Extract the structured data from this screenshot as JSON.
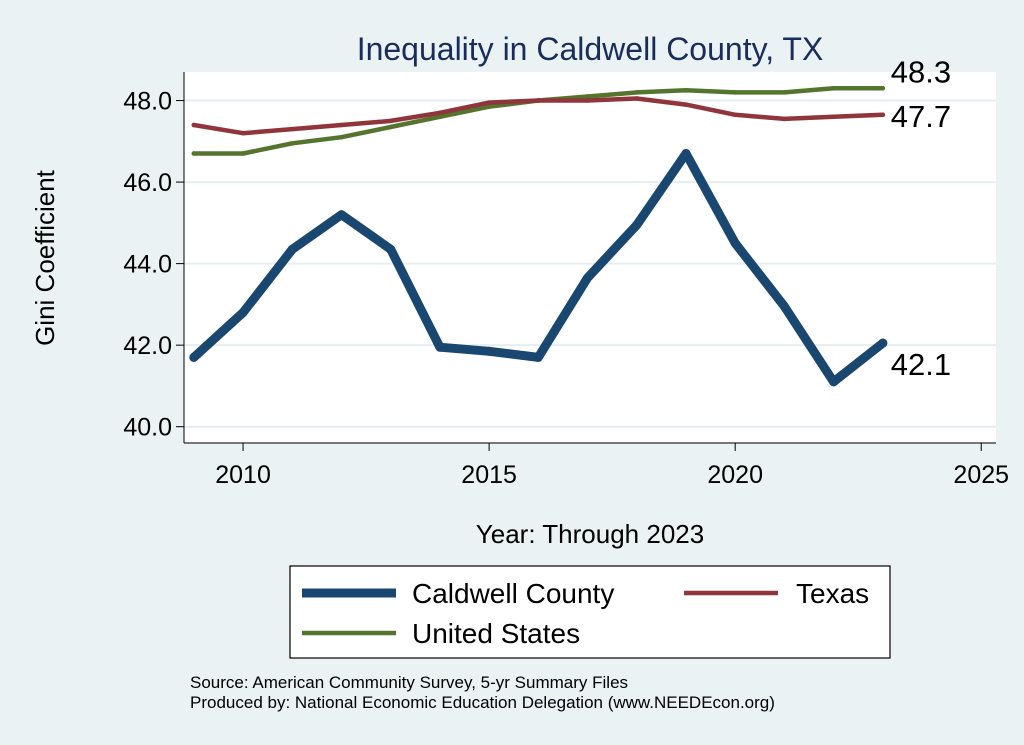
{
  "chart_data": {
    "type": "line",
    "title": "Inequality in Caldwell County, TX",
    "xlabel": "Year: Through 2023",
    "ylabel": "Gini Coefficient",
    "xlim": [
      2008.8,
      2025.3
    ],
    "ylim": [
      39.6,
      48.7
    ],
    "xticks": [
      2010,
      2015,
      2020,
      2025
    ],
    "yticks": [
      40,
      42,
      44,
      46,
      48
    ],
    "ytick_labels": [
      "40.0",
      "42.0",
      "44.0",
      "46.0",
      "48.0"
    ],
    "grid": "horizontal",
    "x": [
      2009,
      2010,
      2011,
      2012,
      2013,
      2014,
      2015,
      2016,
      2017,
      2018,
      2019,
      2020,
      2021,
      2022,
      2023
    ],
    "series": [
      {
        "name": "Caldwell County",
        "color": "#1a476f",
        "end_label": "42.1",
        "values": [
          41.7,
          42.8,
          44.35,
          45.2,
          44.35,
          41.95,
          41.85,
          41.7,
          43.65,
          44.95,
          46.7,
          44.5,
          42.95,
          41.1,
          42.05
        ]
      },
      {
        "name": "Texas",
        "color": "#90353b",
        "end_label": "47.7",
        "values": [
          47.4,
          47.2,
          47.3,
          47.4,
          47.5,
          47.7,
          47.95,
          48.0,
          48.0,
          48.05,
          47.9,
          47.65,
          47.55,
          47.6,
          47.65
        ]
      },
      {
        "name": "United States",
        "color": "#55752f",
        "end_label": "48.3",
        "values": [
          46.7,
          46.7,
          46.95,
          47.1,
          47.35,
          47.6,
          47.85,
          48.0,
          48.1,
          48.2,
          48.25,
          48.2,
          48.2,
          48.3,
          48.3
        ]
      }
    ],
    "legend": {
      "position": "bottom",
      "entries": [
        "Caldwell County",
        "Texas",
        "United States"
      ]
    }
  },
  "notes": {
    "source": "Source: American Community Survey, 5-yr Summary Files",
    "produced_by": "Produced by: National Economic Education Delegation (www.NEEDEcon.org)"
  }
}
